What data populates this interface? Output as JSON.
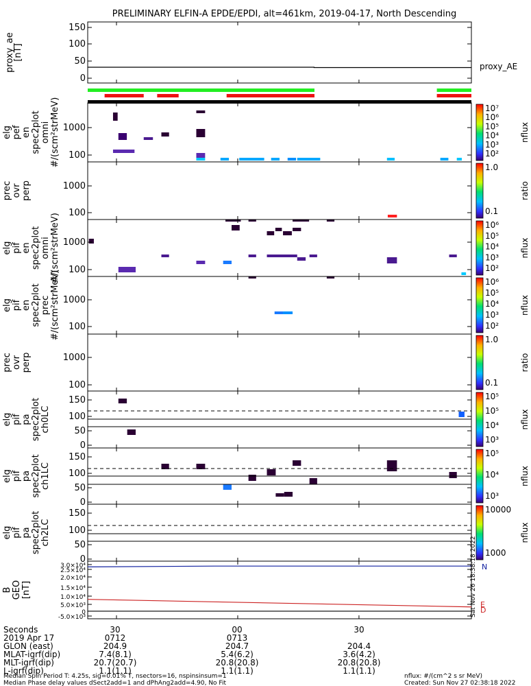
{
  "title": "PRELIMINARY ELFIN-A EPDE/EPDI, alt=461km, 2019-04-17, North Descending",
  "watermark": "Sat Nov 26 18:38:18 2022",
  "chart_data": [
    {
      "type": "line",
      "name": "proxy_ae",
      "ylabel": "proxy_ae [nT]",
      "yticks": [
        "150",
        "100",
        "50",
        "0"
      ],
      "ylim": [
        -10,
        160
      ],
      "series": [
        {
          "name": "proxy_AE",
          "x": [
            0,
            0.59,
            0.59,
            1
          ],
          "values": [
            34,
            34,
            33,
            33
          ]
        }
      ]
    },
    {
      "type": "bar",
      "name": "status-bars",
      "green": [
        [
          0,
          0.591
        ],
        [
          0.91,
          1
        ]
      ],
      "red": [
        [
          0.044,
          0.146
        ],
        [
          0.181,
          0.237
        ],
        [
          0.362,
          0.591
        ],
        [
          0.91,
          1
        ]
      ]
    },
    {
      "type": "heatmap",
      "name": "elfin-epde-omni",
      "ylabel": [
        "elg",
        "pef",
        "en",
        "spec2plot",
        "omni",
        "#/(scm²strMeV)"
      ],
      "yticks": [
        "1000",
        "100"
      ],
      "colorbar": {
        "label": "nflux",
        "ticks": [
          "10⁷",
          "10⁶",
          "10⁵",
          "10⁴",
          "10³",
          "10²"
        ]
      }
    },
    {
      "type": "heatmap",
      "name": "elfin-epde-ratio",
      "ylabel": [
        "prec",
        "ovr",
        "perp"
      ],
      "yticks": [
        "1000",
        "100"
      ],
      "colorbar": {
        "label": "ratio",
        "ticks": [
          "1.0",
          "0.1"
        ]
      }
    },
    {
      "type": "heatmap",
      "name": "elfin-epdi-omni",
      "ylabel": [
        "elg",
        "pif",
        "en",
        "spec2plot",
        "omni",
        "#/(scm²strMeV)"
      ],
      "yticks": [
        "1000",
        "100"
      ],
      "colorbar": {
        "label": "nflux",
        "ticks": [
          "10⁶",
          "10⁵",
          "10⁴",
          "10³",
          "10²"
        ]
      }
    },
    {
      "type": "heatmap",
      "name": "elfin-epdi-prec",
      "ylabel": [
        "elg",
        "pif",
        "en",
        "spec2plot",
        "prec",
        "#/(scm²strMeV)"
      ],
      "yticks": [
        "1000",
        "100"
      ],
      "colorbar": {
        "label": "nflux",
        "ticks": [
          "10⁶",
          "10⁵",
          "10⁴",
          "10³",
          "10²"
        ]
      }
    },
    {
      "type": "heatmap",
      "name": "elfin-epdi-ratio",
      "ylabel": [
        "prec",
        "ovr",
        "perp"
      ],
      "yticks": [
        "1000",
        "100"
      ],
      "colorbar": {
        "label": "ratio",
        "ticks": [
          "1.0",
          "0.1"
        ]
      }
    },
    {
      "type": "heatmap",
      "name": "elfin-pa-ch0",
      "ylabel": [
        "elg",
        "pif",
        "pa",
        "spec2plot",
        "ch0LC"
      ],
      "yticks": [
        "150",
        "100",
        "50",
        "0"
      ],
      "colorbar": {
        "label": "nflux",
        "ticks": [
          "10⁵",
          "10⁵",
          "10⁴",
          "10³"
        ]
      }
    },
    {
      "type": "heatmap",
      "name": "elfin-pa-ch1",
      "ylabel": [
        "elg",
        "pif",
        "pa",
        "spec2plot",
        "ch1LC"
      ],
      "yticks": [
        "150",
        "100",
        "50",
        "0"
      ],
      "colorbar": {
        "label": "nflux",
        "ticks": [
          "10⁵",
          "10⁴",
          "10³"
        ]
      }
    },
    {
      "type": "heatmap",
      "name": "elfin-pa-ch2",
      "ylabel": [
        "elg",
        "pif",
        "pa",
        "spec2plot",
        "ch2LC"
      ],
      "yticks": [
        "150",
        "100",
        "50",
        "0"
      ],
      "colorbar": {
        "label": "nflux",
        "ticks": [
          "10000",
          "1000"
        ]
      }
    },
    {
      "type": "line",
      "name": "elfin-bgeo",
      "ylabel": [
        "B",
        "GEO",
        "[nT]"
      ],
      "yticks": [
        "3.0×10⁴",
        "2.5×10⁴",
        "2.0×10⁴",
        "1.5×10⁴",
        "1.0×10⁴",
        "5.0×10³",
        "0",
        "-5.0×10³"
      ],
      "ylim": [
        -5000,
        30000
      ],
      "series": [
        {
          "name": "N",
          "x": [
            0,
            0.33,
            1
          ],
          "values": [
            26500,
            27000,
            27000
          ]
        },
        {
          "name": "E",
          "x": [
            0,
            1
          ],
          "values": [
            6800,
            2200
          ]
        },
        {
          "name": "D",
          "x": [
            0,
            1
          ],
          "values": [
            -400,
            -400
          ]
        }
      ]
    }
  ],
  "xaxis": {
    "ticks": [
      "30",
      "00",
      "30"
    ],
    "rows": [
      {
        "label": "Seconds",
        "values": [
          "30",
          "00",
          "30"
        ]
      },
      {
        "label": "2019 Apr 17",
        "values": [
          "0712",
          "0713",
          ""
        ]
      },
      {
        "label": "GLON (east)",
        "values": [
          "204.9",
          "204.7",
          "204.4"
        ]
      },
      {
        "label": "MLAT-igrf(dip)",
        "values": [
          "7.4(8.1)",
          "5.4(6.2)",
          "3.6(4.2)"
        ]
      },
      {
        "label": "MLT-igrf(dip)",
        "values": [
          "20.7(20.7)",
          "20.8(20.8)",
          "20.8(20.8)"
        ]
      },
      {
        "label": "L-igrf(dip)",
        "values": [
          "1.1(1.1)",
          "1.1(1.1)",
          "1.1(1.1)"
        ]
      }
    ]
  },
  "footer": {
    "line1": "Median Spin Period T: 4.25s, sig=0.01% T, nsectors=16, nspinsinsum=1",
    "line2": "Median Phase delay values dSect2add=1 and dPhAng2add=4.90, No Fit",
    "right1": "nflux: #/(cm^2 s sr MeV)",
    "right2": "Created: Sun Nov 27 02:38:18 2022"
  }
}
